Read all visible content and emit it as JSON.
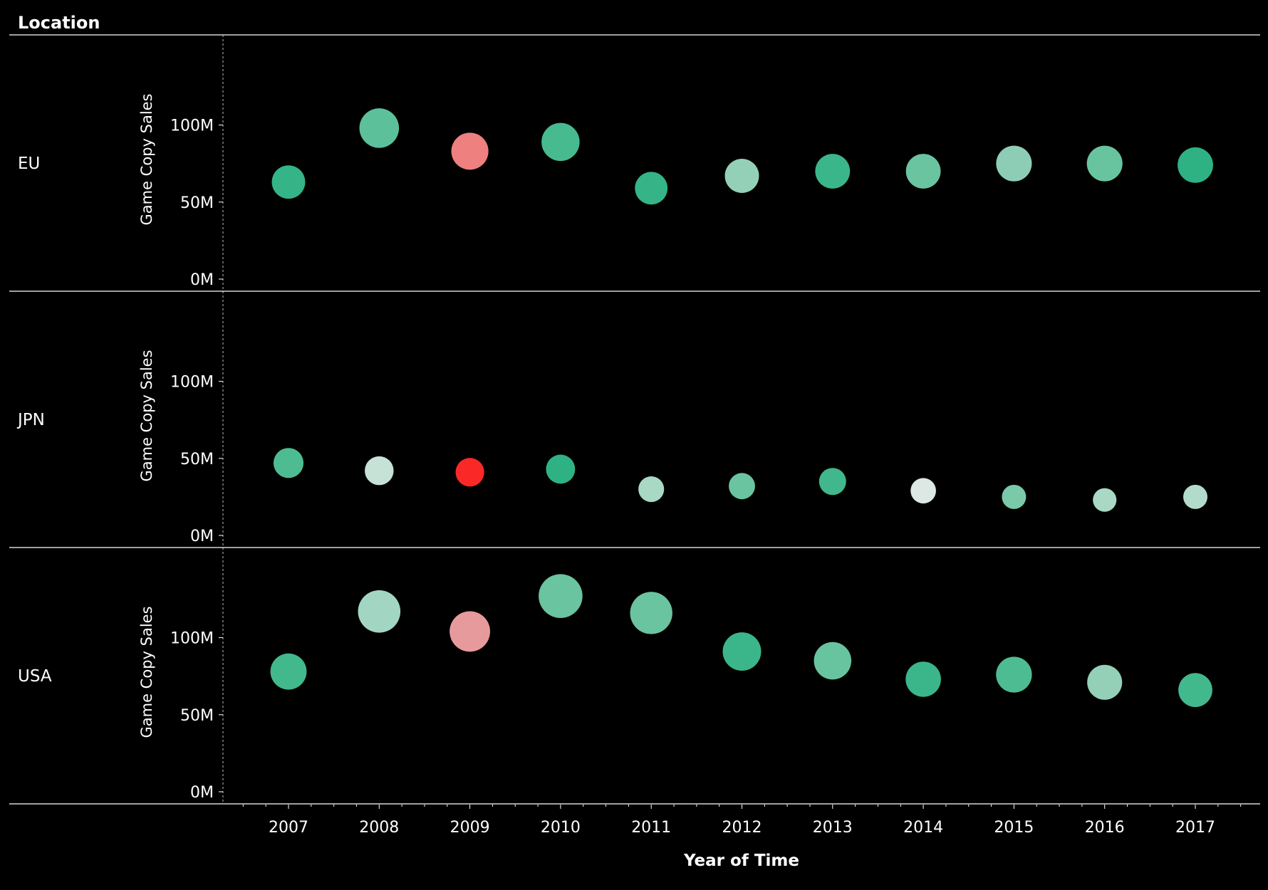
{
  "chart_data": {
    "type": "scatter",
    "header": "Location",
    "xlabel": "Year of Time",
    "ylabel": "Game Copy Sales",
    "ylim": [
      0,
      140
    ],
    "y_ticks": [
      "0M",
      "50M",
      "100M"
    ],
    "y_tick_values": [
      0,
      50,
      100
    ],
    "categories": [
      "2007",
      "2008",
      "2009",
      "2010",
      "2011",
      "2012",
      "2013",
      "2014",
      "2015",
      "2016",
      "2017"
    ],
    "grid": false,
    "series": [
      {
        "name": "EU",
        "values": [
          63,
          98,
          83,
          89,
          59,
          67,
          70,
          70,
          75,
          75,
          74
        ],
        "colors": [
          "#34b487",
          "#5cc09b",
          "#ee8080",
          "#47ba8f",
          "#34b487",
          "#94d0b8",
          "#3bb68a",
          "#6ac4a0",
          "#8ecdb5",
          "#68c49f",
          "#2fb283"
        ]
      },
      {
        "name": "JPN",
        "values": [
          47,
          42,
          41,
          43,
          30,
          32,
          35,
          29,
          25,
          23,
          25
        ],
        "colors": [
          "#4ebc93",
          "#c6e2d7",
          "#fb2828",
          "#2fb283",
          "#a9d8c5",
          "#6ac4a0",
          "#40b78c",
          "#dce8e3",
          "#7ac9a8",
          "#a9d8c5",
          "#b3dbcc"
        ]
      },
      {
        "name": "USA",
        "values": [
          78,
          117,
          104,
          127,
          116,
          91,
          85,
          73,
          76,
          71,
          66
        ],
        "colors": [
          "#42b88d",
          "#a3d6c2",
          "#e79a9c",
          "#6ac4a0",
          "#6ac4a0",
          "#3bb68a",
          "#68c49f",
          "#3bb68a",
          "#4ebc93",
          "#94d0b8",
          "#42b88d"
        ]
      }
    ]
  }
}
